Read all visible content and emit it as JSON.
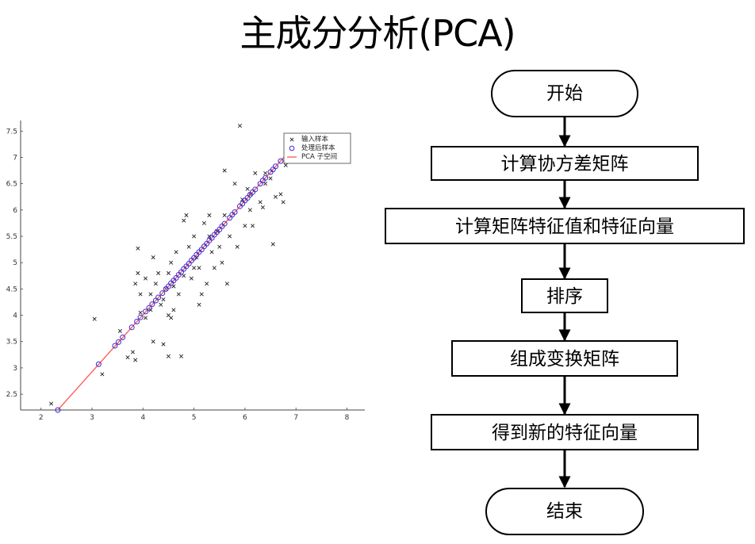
{
  "title": "主成分分析(PCA)",
  "chart_data": {
    "type": "scatter",
    "title": "",
    "xlabel": "",
    "ylabel": "",
    "xlim": [
      1.6,
      8.35
    ],
    "ylim": [
      2.2,
      7.7
    ],
    "xticks": [
      "2",
      "3",
      "4",
      "5",
      "6",
      "7",
      "8"
    ],
    "yticks": [
      "2.5",
      "3",
      "3.5",
      "4",
      "4.5",
      "5",
      "5.5",
      "6",
      "6.5",
      "7",
      "7.5"
    ],
    "legend_position": "top-right",
    "colors": {
      "input": "#222222",
      "processed": "#3a2bd0",
      "subspace": "#ff6060"
    },
    "series": [
      {
        "name": "输入样本",
        "marker": "x",
        "points": [
          [
            2.2,
            2.32
          ],
          [
            3.05,
            3.93
          ],
          [
            3.55,
            3.7
          ],
          [
            3.2,
            2.88
          ],
          [
            3.7,
            3.2
          ],
          [
            3.8,
            3.3
          ],
          [
            3.85,
            3.15
          ],
          [
            3.85,
            4.6
          ],
          [
            3.9,
            4.8
          ],
          [
            3.95,
            4.4
          ],
          [
            3.95,
            4.05
          ],
          [
            4.05,
            4.7
          ],
          [
            3.9,
            5.27
          ],
          [
            4.05,
            3.95
          ],
          [
            4.15,
            4.1
          ],
          [
            4.2,
            5.1
          ],
          [
            4.25,
            4.6
          ],
          [
            4.3,
            4.8
          ],
          [
            4.35,
            4.2
          ],
          [
            4.4,
            3.45
          ],
          [
            4.45,
            4.5
          ],
          [
            4.5,
            3.22
          ],
          [
            4.5,
            4.0
          ],
          [
            4.55,
            3.95
          ],
          [
            4.55,
            5.0
          ],
          [
            4.6,
            4.1
          ],
          [
            4.65,
            5.2
          ],
          [
            4.7,
            4.4
          ],
          [
            4.75,
            3.22
          ],
          [
            4.8,
            5.8
          ],
          [
            4.85,
            5.9
          ],
          [
            4.9,
            5.3
          ],
          [
            4.95,
            4.7
          ],
          [
            5.0,
            5.5
          ],
          [
            5.05,
            5.1
          ],
          [
            5.1,
            4.9
          ],
          [
            5.1,
            4.2
          ],
          [
            5.15,
            4.4
          ],
          [
            5.2,
            5.75
          ],
          [
            5.25,
            4.6
          ],
          [
            5.3,
            5.9
          ],
          [
            5.35,
            5.2
          ],
          [
            5.4,
            4.9
          ],
          [
            5.45,
            5.6
          ],
          [
            5.5,
            5.3
          ],
          [
            5.55,
            5.0
          ],
          [
            5.6,
            6.75
          ],
          [
            5.6,
            5.9
          ],
          [
            5.65,
            4.6
          ],
          [
            5.7,
            5.5
          ],
          [
            5.8,
            6.5
          ],
          [
            5.85,
            5.3
          ],
          [
            5.9,
            7.6
          ],
          [
            5.95,
            6.2
          ],
          [
            6.0,
            5.7
          ],
          [
            6.05,
            6.4
          ],
          [
            6.1,
            6.0
          ],
          [
            6.15,
            5.7
          ],
          [
            6.2,
            6.7
          ],
          [
            6.3,
            6.15
          ],
          [
            6.35,
            6.05
          ],
          [
            6.4,
            6.5
          ],
          [
            6.5,
            6.6
          ],
          [
            6.55,
            5.35
          ],
          [
            6.6,
            6.25
          ],
          [
            6.7,
            6.3
          ],
          [
            6.75,
            6.15
          ],
          [
            6.8,
            6.85
          ],
          [
            6.4,
            6.7
          ],
          [
            6.1,
            6.3
          ],
          [
            4.4,
            4.3
          ],
          [
            4.6,
            4.55
          ],
          [
            4.8,
            4.75
          ],
          [
            5.0,
            4.9
          ],
          [
            4.2,
            3.5
          ],
          [
            4.15,
            4.4
          ],
          [
            4.5,
            4.8
          ],
          [
            5.3,
            5.5
          ]
        ]
      },
      {
        "name": "处理后样本",
        "marker": "o",
        "points": [
          [
            2.33,
            2.2
          ],
          [
            3.13,
            3.07
          ],
          [
            3.45,
            3.42
          ],
          [
            3.52,
            3.49
          ],
          [
            3.6,
            3.58
          ],
          [
            3.78,
            3.77
          ],
          [
            3.88,
            3.88
          ],
          [
            3.95,
            3.96
          ],
          [
            4.05,
            4.07
          ],
          [
            4.12,
            4.14
          ],
          [
            4.18,
            4.21
          ],
          [
            4.25,
            4.28
          ],
          [
            4.3,
            4.34
          ],
          [
            4.38,
            4.42
          ],
          [
            4.45,
            4.5
          ],
          [
            4.5,
            4.55
          ],
          [
            4.55,
            4.61
          ],
          [
            4.6,
            4.66
          ],
          [
            4.65,
            4.71
          ],
          [
            4.7,
            4.77
          ],
          [
            4.75,
            4.82
          ],
          [
            4.8,
            4.88
          ],
          [
            4.85,
            4.93
          ],
          [
            4.9,
            4.98
          ],
          [
            4.95,
            5.04
          ],
          [
            5.0,
            5.09
          ],
          [
            5.05,
            5.15
          ],
          [
            5.1,
            5.2
          ],
          [
            5.15,
            5.25
          ],
          [
            5.2,
            5.31
          ],
          [
            5.25,
            5.36
          ],
          [
            5.3,
            5.42
          ],
          [
            5.35,
            5.47
          ],
          [
            5.4,
            5.53
          ],
          [
            5.45,
            5.58
          ],
          [
            5.5,
            5.63
          ],
          [
            5.55,
            5.69
          ],
          [
            5.6,
            5.74
          ],
          [
            5.7,
            5.85
          ],
          [
            5.75,
            5.91
          ],
          [
            5.8,
            5.96
          ],
          [
            5.9,
            6.07
          ],
          [
            5.95,
            6.12
          ],
          [
            6.0,
            6.18
          ],
          [
            6.05,
            6.23
          ],
          [
            6.1,
            6.29
          ],
          [
            6.15,
            6.34
          ],
          [
            6.2,
            6.39
          ],
          [
            6.3,
            6.5
          ],
          [
            6.35,
            6.56
          ],
          [
            6.4,
            6.61
          ],
          [
            6.5,
            6.72
          ],
          [
            6.55,
            6.77
          ],
          [
            6.6,
            6.83
          ],
          [
            6.7,
            6.93
          ]
        ]
      },
      {
        "name": "PCA 子空间",
        "marker": "line",
        "points": [
          [
            2.33,
            2.2
          ],
          [
            6.78,
            7.02
          ]
        ]
      }
    ]
  },
  "flowchart": {
    "nodes": [
      {
        "id": "start",
        "shape": "terminal",
        "label": "开始"
      },
      {
        "id": "step1",
        "shape": "process",
        "label": "计算协方差矩阵"
      },
      {
        "id": "step2",
        "shape": "process",
        "label": "计算矩阵特征值和特征向量"
      },
      {
        "id": "step3",
        "shape": "process",
        "label": "排序"
      },
      {
        "id": "step4",
        "shape": "process",
        "label": "组成变换矩阵"
      },
      {
        "id": "step5",
        "shape": "process",
        "label": "得到新的特征向量"
      },
      {
        "id": "end",
        "shape": "terminal",
        "label": "结束"
      }
    ],
    "edges": [
      [
        "start",
        "step1"
      ],
      [
        "step1",
        "step2"
      ],
      [
        "step2",
        "step3"
      ],
      [
        "step3",
        "step4"
      ],
      [
        "step4",
        "step5"
      ],
      [
        "step5",
        "end"
      ]
    ]
  }
}
